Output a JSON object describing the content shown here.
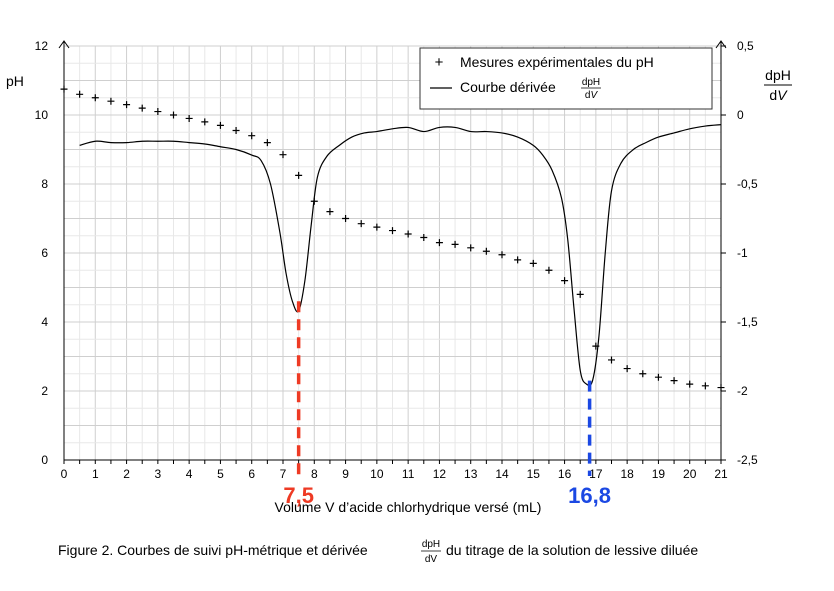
{
  "chart_data": {
    "type": "line",
    "xlabel": "Volume V d’acide chlorhydrique versé (mL)",
    "ylabel_left": "pH",
    "ylabel_right": {
      "num": "dpH",
      "den_d": "d",
      "den_v": "V"
    },
    "xlim": [
      0,
      21
    ],
    "ylim_left": [
      0,
      12
    ],
    "ylim_right": [
      -2.5,
      0.5
    ],
    "grid": true,
    "legend_position": "top-right",
    "x_ticks": [
      "0",
      "1",
      "2",
      "3",
      "4",
      "5",
      "6",
      "7",
      "8",
      "9",
      "10",
      "11",
      "12",
      "13",
      "14",
      "15",
      "16",
      "17",
      "18",
      "19",
      "20",
      "21"
    ],
    "y_left_ticks": [
      "0",
      "2",
      "4",
      "6",
      "8",
      "10",
      "12"
    ],
    "y_right_ticks": [
      "-2,5",
      "-2",
      "-1,5",
      "-1",
      "-0,5",
      "0",
      "0,5"
    ],
    "series": [
      {
        "name": "Mesures expérimentales du pH",
        "marker": "+",
        "axis": "left",
        "x": [
          0,
          0.5,
          1,
          1.5,
          2,
          2.5,
          3,
          3.5,
          4,
          4.5,
          5,
          5.5,
          6,
          6.5,
          7,
          7.5,
          8,
          8.5,
          9,
          9.5,
          10,
          10.5,
          11,
          11.5,
          12,
          12.5,
          13,
          13.5,
          14,
          14.5,
          15,
          15.5,
          16,
          16.5,
          17,
          17.5,
          18,
          18.5,
          19,
          19.5,
          20,
          20.5,
          21
        ],
        "y": [
          10.75,
          10.6,
          10.5,
          10.4,
          10.3,
          10.2,
          10.1,
          10.0,
          9.9,
          9.8,
          9.7,
          9.55,
          9.4,
          9.2,
          8.85,
          8.25,
          7.5,
          7.2,
          7.0,
          6.85,
          6.75,
          6.65,
          6.55,
          6.45,
          6.3,
          6.25,
          6.15,
          6.05,
          5.95,
          5.8,
          5.7,
          5.5,
          5.2,
          4.8,
          3.3,
          2.9,
          2.65,
          2.5,
          2.4,
          2.3,
          2.2,
          2.15,
          2.1
        ]
      },
      {
        "name": "Courbe dérivée",
        "axis": "right",
        "x": [
          0.5,
          1,
          1.5,
          2,
          2.5,
          3,
          3.5,
          4,
          4.5,
          5,
          5.5,
          6,
          6.3,
          6.6,
          6.9,
          7.1,
          7.3,
          7.5,
          7.7,
          7.9,
          8.1,
          8.4,
          8.8,
          9.2,
          9.6,
          10,
          10.5,
          11,
          11.5,
          12,
          12.5,
          13,
          13.5,
          14,
          14.5,
          15,
          15.3,
          15.6,
          15.9,
          16.1,
          16.3,
          16.5,
          16.7,
          16.9,
          17.1,
          17.3,
          17.5,
          17.8,
          18.2,
          18.6,
          19,
          19.5,
          20,
          20.5,
          21
        ],
        "y": [
          -0.22,
          -0.19,
          -0.2,
          -0.2,
          -0.19,
          -0.19,
          -0.19,
          -0.2,
          -0.21,
          -0.23,
          -0.25,
          -0.29,
          -0.33,
          -0.5,
          -0.85,
          -1.15,
          -1.35,
          -1.42,
          -1.2,
          -0.8,
          -0.45,
          -0.3,
          -0.22,
          -0.16,
          -0.13,
          -0.12,
          -0.1,
          -0.09,
          -0.12,
          -0.09,
          -0.09,
          -0.12,
          -0.12,
          -0.13,
          -0.16,
          -0.22,
          -0.29,
          -0.4,
          -0.6,
          -0.9,
          -1.4,
          -1.85,
          -1.95,
          -1.92,
          -1.6,
          -1.0,
          -0.55,
          -0.35,
          -0.25,
          -0.2,
          -0.16,
          -0.13,
          -0.1,
          -0.08,
          -0.07
        ]
      }
    ],
    "annotations": [
      {
        "x": 7.5,
        "label": "7,5",
        "color": "#ee3a24",
        "pH_top": 4.6
      },
      {
        "x": 16.8,
        "label": "16,8",
        "color": "#1b48e3",
        "pH_top": 2.3
      }
    ]
  },
  "legend": {
    "item1_label": "Mesures expérimentales du pH",
    "item2_label": "Courbe dérivée",
    "item2_frac_num": "dpH",
    "item2_frac_den_d": "d",
    "item2_frac_den_v": "V"
  },
  "caption": {
    "before": "Figure 2. Courbes de suivi pH-métrique et dérivée",
    "frac_num": "dpH",
    "frac_den": "dV",
    "after": "du titrage de la solution de lessive diluée"
  }
}
